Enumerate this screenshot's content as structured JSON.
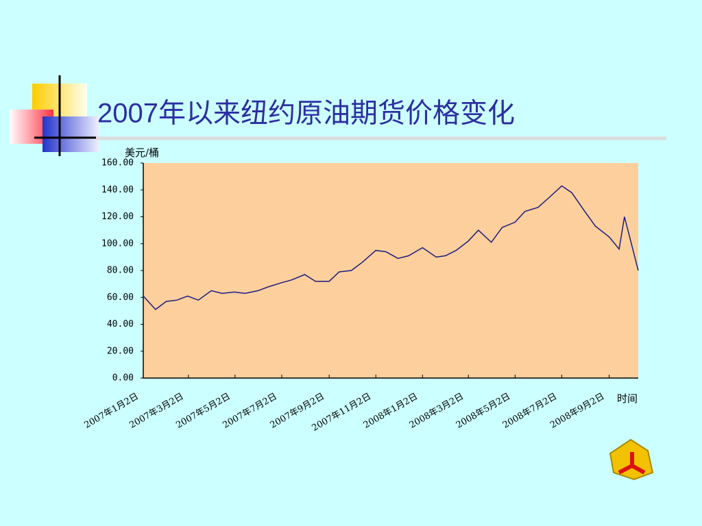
{
  "chart_data": {
    "type": "line",
    "title": "2007年以来纽约原油期货价格变化",
    "y_label": "美元/桶",
    "x_label": "时间",
    "x": [
      "2007-01-02",
      "2007-01-18",
      "2007-02-01",
      "2007-02-15",
      "2007-03-01",
      "2007-03-15",
      "2007-04-01",
      "2007-04-15",
      "2007-05-01",
      "2007-05-15",
      "2007-06-01",
      "2007-06-15",
      "2007-07-02",
      "2007-07-15",
      "2007-08-01",
      "2007-08-15",
      "2007-09-02",
      "2007-09-15",
      "2007-10-01",
      "2007-10-15",
      "2007-11-02",
      "2007-11-15",
      "2007-12-01",
      "2007-12-15",
      "2008-01-02",
      "2008-01-20",
      "2008-02-01",
      "2008-02-15",
      "2008-03-02",
      "2008-03-15",
      "2008-04-01",
      "2008-04-15",
      "2008-05-02",
      "2008-05-15",
      "2008-06-01",
      "2008-06-15",
      "2008-07-02",
      "2008-07-15",
      "2008-08-01",
      "2008-08-15",
      "2008-09-02",
      "2008-09-15",
      "2008-09-22",
      "2008-10-01",
      "2008-10-10"
    ],
    "series": [
      {
        "color": "#1a1a80",
        "values": [
          61,
          51,
          57,
          58,
          61,
          58,
          65,
          63,
          64,
          63,
          65,
          68,
          71,
          73,
          77,
          72,
          72,
          79,
          80,
          86,
          95,
          94,
          89,
          91,
          97,
          90,
          91,
          95,
          102,
          110,
          101,
          112,
          116,
          124,
          127,
          134,
          143,
          138,
          124,
          113,
          105,
          96,
          120,
          100,
          80
        ]
      }
    ],
    "xlim": [
      "2007-01-02",
      "2008-10-10"
    ],
    "xticks": [
      {
        "value": "2007-01-02",
        "label": "2007年1月2日"
      },
      {
        "value": "2007-03-02",
        "label": "2007年3月2日"
      },
      {
        "value": "2007-05-02",
        "label": "2007年5月2日"
      },
      {
        "value": "2007-07-02",
        "label": "2007年7月2日"
      },
      {
        "value": "2007-09-02",
        "label": "2007年9月2日"
      },
      {
        "value": "2007-11-02",
        "label": "2007年11月2日"
      },
      {
        "value": "2008-01-02",
        "label": "2008年1月2日"
      },
      {
        "value": "2008-03-02",
        "label": "2008年3月2日"
      },
      {
        "value": "2008-05-02",
        "label": "2008年5月2日"
      },
      {
        "value": "2008-07-02",
        "label": "2008年7月2日"
      },
      {
        "value": "2008-09-02",
        "label": "2008年9月2日"
      }
    ],
    "ylim": [
      0,
      160
    ],
    "yticks": [
      {
        "value": 0,
        "label": "0.00"
      },
      {
        "value": 20,
        "label": "20.00"
      },
      {
        "value": 40,
        "label": "40.00"
      },
      {
        "value": 60,
        "label": "60.00"
      },
      {
        "value": 80,
        "label": "80.00"
      },
      {
        "value": 100,
        "label": "100.00"
      },
      {
        "value": 120,
        "label": "120.00"
      },
      {
        "value": 140,
        "label": "140.00"
      },
      {
        "value": 160,
        "label": "160.00"
      }
    ],
    "plot_background": "#fccf9c"
  }
}
